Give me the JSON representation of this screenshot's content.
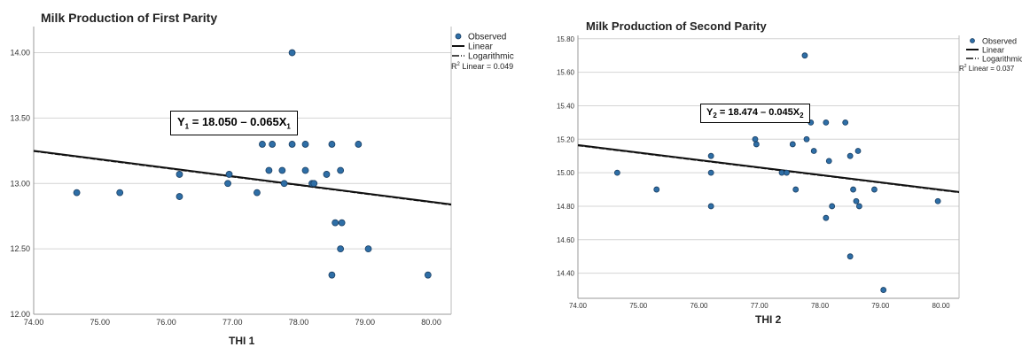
{
  "chart_data": [
    {
      "type": "scatter",
      "title": "Milk Production of First Parity",
      "xlabel": "THI 1",
      "ylabel": "",
      "xlim": [
        74,
        80.3
      ],
      "ylim": [
        12,
        14.2
      ],
      "xticks": [
        "74.00",
        "75.00",
        "76.00",
        "77.00",
        "78.00",
        "79.00",
        "80.00"
      ],
      "yticks": [
        "12.00",
        "12.50",
        "13.00",
        "13.50",
        "14.00"
      ],
      "legend": [
        "Observed",
        "Linear",
        "Logarithmic"
      ],
      "r2_label": "Linear = 0.049",
      "equation": {
        "y": "Y",
        "y_sub": "1",
        "text": " = 18.050 – 0.065X",
        "x_sub": "1"
      },
      "fit_line": {
        "x": [
          74,
          80.3
        ],
        "y": [
          13.25,
          12.84
        ]
      },
      "points": [
        {
          "x": 74.65,
          "y": 12.93
        },
        {
          "x": 75.3,
          "y": 12.93
        },
        {
          "x": 76.2,
          "y": 13.07
        },
        {
          "x": 76.2,
          "y": 12.9
        },
        {
          "x": 76.95,
          "y": 13.07
        },
        {
          "x": 76.93,
          "y": 13.0
        },
        {
          "x": 77.37,
          "y": 12.93
        },
        {
          "x": 77.45,
          "y": 13.3
        },
        {
          "x": 77.6,
          "y": 13.3
        },
        {
          "x": 77.55,
          "y": 13.1
        },
        {
          "x": 77.75,
          "y": 13.1
        },
        {
          "x": 77.78,
          "y": 13.0
        },
        {
          "x": 77.9,
          "y": 13.3
        },
        {
          "x": 77.9,
          "y": 14.0
        },
        {
          "x": 78.1,
          "y": 13.3
        },
        {
          "x": 78.1,
          "y": 13.1
        },
        {
          "x": 78.2,
          "y": 13.0
        },
        {
          "x": 78.23,
          "y": 13.0
        },
        {
          "x": 78.42,
          "y": 13.07
        },
        {
          "x": 78.5,
          "y": 13.3
        },
        {
          "x": 78.55,
          "y": 12.7
        },
        {
          "x": 78.63,
          "y": 13.1
        },
        {
          "x": 78.65,
          "y": 12.7
        },
        {
          "x": 78.63,
          "y": 12.5
        },
        {
          "x": 78.5,
          "y": 12.3
        },
        {
          "x": 78.9,
          "y": 13.3
        },
        {
          "x": 79.05,
          "y": 12.5
        },
        {
          "x": 79.95,
          "y": 12.3
        }
      ]
    },
    {
      "type": "scatter",
      "title": "Milk Production of Second Parity",
      "xlabel": "THI 2",
      "ylabel": "",
      "xlim": [
        74,
        80.3
      ],
      "ylim": [
        14.25,
        15.82
      ],
      "xticks": [
        "74.00",
        "75.00",
        "76.00",
        "77.00",
        "78.00",
        "79.00",
        "80.00"
      ],
      "yticks": [
        "14.40",
        "14.60",
        "14.80",
        "15.00",
        "15.20",
        "15.40",
        "15.60",
        "15.80"
      ],
      "legend": [
        "Observed",
        "Linear",
        "Logarithmic"
      ],
      "r2_label": "Linear = 0.037",
      "equation": {
        "y": "Y",
        "y_sub": "2",
        "text": " = 18.474 – 0.045X",
        "x_sub": "2"
      },
      "fit_line": {
        "x": [
          74,
          80.3
        ],
        "y": [
          15.165,
          14.885
        ]
      },
      "points": [
        {
          "x": 74.65,
          "y": 15.0
        },
        {
          "x": 75.3,
          "y": 14.9
        },
        {
          "x": 76.2,
          "y": 15.1
        },
        {
          "x": 76.2,
          "y": 15.0
        },
        {
          "x": 76.2,
          "y": 14.8
        },
        {
          "x": 76.93,
          "y": 15.2
        },
        {
          "x": 76.95,
          "y": 15.17
        },
        {
          "x": 77.37,
          "y": 15.0
        },
        {
          "x": 77.45,
          "y": 15.0
        },
        {
          "x": 77.55,
          "y": 15.17
        },
        {
          "x": 77.6,
          "y": 14.9
        },
        {
          "x": 77.75,
          "y": 15.7
        },
        {
          "x": 77.78,
          "y": 15.2
        },
        {
          "x": 77.85,
          "y": 15.3
        },
        {
          "x": 77.9,
          "y": 15.13
        },
        {
          "x": 78.1,
          "y": 15.3
        },
        {
          "x": 78.1,
          "y": 14.73
        },
        {
          "x": 78.15,
          "y": 15.07
        },
        {
          "x": 78.2,
          "y": 14.8
        },
        {
          "x": 78.42,
          "y": 15.3
        },
        {
          "x": 78.5,
          "y": 15.1
        },
        {
          "x": 78.55,
          "y": 14.9
        },
        {
          "x": 78.63,
          "y": 15.13
        },
        {
          "x": 78.6,
          "y": 14.83
        },
        {
          "x": 78.65,
          "y": 14.8
        },
        {
          "x": 78.5,
          "y": 14.5
        },
        {
          "x": 78.9,
          "y": 14.9
        },
        {
          "x": 79.05,
          "y": 14.3
        },
        {
          "x": 79.95,
          "y": 14.83
        }
      ]
    }
  ],
  "colors": {
    "point": "#2e6ea6",
    "point_stroke": "#1b3f63",
    "grid": "#d4d4d4",
    "fit": "#111111"
  }
}
